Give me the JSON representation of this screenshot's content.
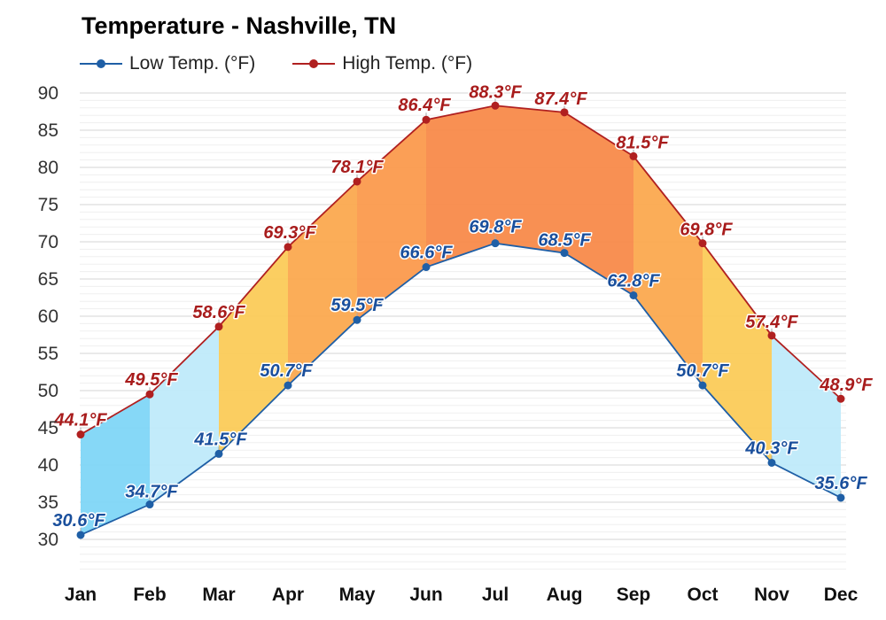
{
  "title": "Temperature - Nashville, TN",
  "legend": {
    "low_label": "Low Temp. (°F)",
    "high_label": "High Temp. (°F)"
  },
  "colors": {
    "low": "#1f5fa6",
    "high": "#b02020",
    "low_text": "#1a4f9c",
    "high_text": "#a81c1c"
  },
  "chart_data": {
    "type": "line",
    "categories": [
      "Jan",
      "Feb",
      "Mar",
      "Apr",
      "May",
      "Jun",
      "Jul",
      "Aug",
      "Sep",
      "Oct",
      "Nov",
      "Dec"
    ],
    "series": [
      {
        "name": "Low Temp. (°F)",
        "values": [
          30.6,
          34.7,
          41.5,
          50.7,
          59.5,
          66.6,
          69.8,
          68.5,
          62.8,
          50.7,
          40.3,
          35.6
        ]
      },
      {
        "name": "High Temp. (°F)",
        "values": [
          44.1,
          49.5,
          58.6,
          69.3,
          78.1,
          86.4,
          88.3,
          87.4,
          81.5,
          69.8,
          57.4,
          48.9
        ]
      }
    ],
    "value_labels": {
      "low": [
        "30.6°F",
        "34.7°F",
        "41.5°F",
        "50.7°F",
        "59.5°F",
        "66.6°F",
        "69.8°F",
        "68.5°F",
        "62.8°F",
        "50.7°F",
        "40.3°F",
        "35.6°F"
      ],
      "high": [
        "44.1°F",
        "49.5°F",
        "58.6°F",
        "69.3°F",
        "78.1°F",
        "86.4°F",
        "88.3°F",
        "87.4°F",
        "81.5°F",
        "69.8°F",
        "57.4°F",
        "48.9°F"
      ]
    },
    "yticks": [
      30,
      35,
      40,
      45,
      50,
      55,
      60,
      65,
      70,
      75,
      80,
      85,
      90
    ],
    "ylim": [
      25,
      92
    ],
    "grid": true,
    "legend_position": "top-left"
  }
}
